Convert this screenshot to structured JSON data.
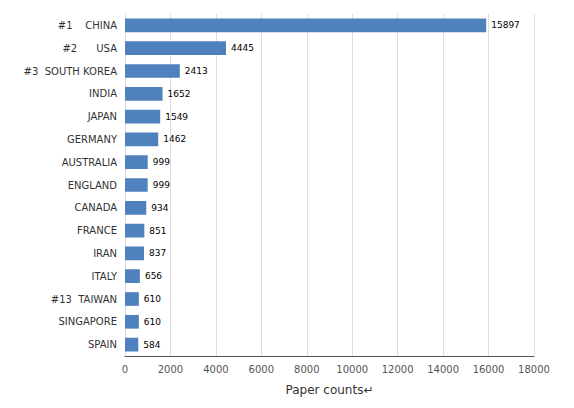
{
  "chart_data": {
    "type": "bar",
    "orientation": "horizontal",
    "categories": [
      "#1    CHINA",
      "#2      USA",
      "#3  SOUTH KOREA",
      "INDIA",
      "JAPAN",
      "GERMANY",
      "AUSTRALIA",
      "ENGLAND",
      "CANADA",
      "FRANCE",
      "IRAN",
      "ITALY",
      "#13  TAIWAN",
      "SINGAPORE",
      "SPAIN"
    ],
    "values": [
      15897,
      4445,
      2413,
      1652,
      1549,
      1462,
      999,
      999,
      934,
      851,
      837,
      656,
      610,
      610,
      584
    ],
    "color": "#4f81bd",
    "xlabel": "Paper counts↵",
    "xlim": [
      0,
      18000
    ],
    "xticks": [
      0,
      2000,
      4000,
      6000,
      8000,
      10000,
      12000,
      14000,
      16000,
      18000
    ],
    "grid": true,
    "data_labels": true
  }
}
